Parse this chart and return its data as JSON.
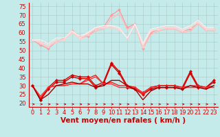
{
  "xlabel": "Vent moyen/en rafales ( km/h )",
  "bg_color": "#c5eaea",
  "grid_color": "#b0cccc",
  "xlim": [
    -0.5,
    23.5
  ],
  "ylim": [
    18,
    77
  ],
  "yticks": [
    20,
    25,
    30,
    35,
    40,
    45,
    50,
    55,
    60,
    65,
    70,
    75
  ],
  "xticks": [
    0,
    1,
    2,
    3,
    4,
    5,
    6,
    7,
    8,
    9,
    10,
    11,
    12,
    13,
    14,
    15,
    16,
    17,
    18,
    19,
    20,
    21,
    22,
    23
  ],
  "lines_light": [
    {
      "x": [
        0,
        1,
        2,
        3,
        4,
        5,
        6,
        7,
        8,
        9,
        10,
        11,
        12,
        13,
        14,
        15,
        16,
        17,
        18,
        19,
        20,
        21,
        22,
        23
      ],
      "y": [
        56,
        53,
        51,
        55,
        57,
        61,
        58,
        58,
        62,
        63,
        70,
        73,
        63,
        65,
        51,
        60,
        62,
        63,
        63,
        61,
        62,
        66,
        62,
        62
      ],
      "color": "#ff9999",
      "lw": 0.9,
      "marker": "D",
      "ms": 2.0
    },
    {
      "x": [
        0,
        1,
        2,
        3,
        4,
        5,
        6,
        7,
        8,
        9,
        10,
        11,
        12,
        13,
        14,
        15,
        16,
        17,
        18,
        19,
        20,
        21,
        22,
        23
      ],
      "y": [
        56,
        54,
        52,
        55,
        56,
        60,
        57,
        58,
        61,
        62,
        68,
        71,
        62,
        64,
        51,
        59,
        61,
        62,
        62,
        60,
        61,
        65,
        61,
        61
      ],
      "color": "#ffbbbb",
      "lw": 0.9,
      "marker": null,
      "ms": 2.0
    },
    {
      "x": [
        0,
        1,
        2,
        3,
        4,
        5,
        6,
        7,
        8,
        9,
        10,
        11,
        12,
        13,
        14,
        15,
        16,
        17,
        18,
        19,
        20,
        21,
        22,
        23
      ],
      "y": [
        56,
        54,
        52,
        55,
        56,
        60,
        57,
        59,
        62,
        63,
        63,
        62,
        57,
        64,
        52,
        61,
        62,
        63,
        63,
        61,
        63,
        66,
        62,
        62
      ],
      "color": "#ffcccc",
      "lw": 0.9,
      "marker": "D",
      "ms": 2.0
    },
    {
      "x": [
        0,
        1,
        2,
        3,
        4,
        5,
        6,
        7,
        8,
        9,
        10,
        11,
        12,
        13,
        14,
        15,
        16,
        17,
        18,
        19,
        20,
        21,
        22,
        23
      ],
      "y": [
        56,
        55,
        53,
        56,
        56,
        61,
        57,
        60,
        63,
        63,
        64,
        62,
        57,
        65,
        53,
        61,
        62,
        63,
        63,
        61,
        63,
        66,
        62,
        62
      ],
      "color": "#ffdddd",
      "lw": 0.9,
      "marker": null,
      "ms": 2.0
    },
    {
      "x": [
        0,
        1,
        2,
        3,
        4,
        5,
        6,
        7,
        8,
        9,
        10,
        11,
        12,
        13,
        14,
        15,
        16,
        17,
        18,
        19,
        20,
        21,
        22,
        23
      ],
      "y": [
        56,
        56,
        54,
        57,
        57,
        61,
        58,
        60,
        63,
        64,
        64,
        63,
        57,
        65,
        54,
        62,
        63,
        64,
        64,
        62,
        64,
        67,
        63,
        63
      ],
      "color": "#ffeeee",
      "lw": 0.9,
      "marker": null,
      "ms": 2.0
    }
  ],
  "lines_dark": [
    {
      "x": [
        0,
        1,
        2,
        3,
        4,
        5,
        6,
        7,
        8,
        9,
        10,
        11,
        12,
        13,
        14,
        15,
        16,
        17,
        18,
        19,
        20,
        21,
        22,
        23
      ],
      "y": [
        30,
        22,
        29,
        33,
        33,
        36,
        35,
        35,
        30,
        32,
        43,
        38,
        30,
        29,
        26,
        29,
        30,
        30,
        30,
        29,
        38,
        30,
        29,
        33
      ],
      "color": "#dd0000",
      "lw": 1.0,
      "marker": "D",
      "ms": 2.2
    },
    {
      "x": [
        0,
        1,
        2,
        3,
        4,
        5,
        6,
        7,
        8,
        9,
        10,
        11,
        12,
        13,
        14,
        15,
        16,
        17,
        18,
        19,
        20,
        21,
        22,
        23
      ],
      "y": [
        30,
        22,
        28,
        32,
        32,
        35,
        34,
        34,
        29,
        31,
        42,
        37,
        29,
        28,
        25,
        28,
        29,
        29,
        29,
        28,
        37,
        29,
        29,
        32
      ],
      "color": "#cc0000",
      "lw": 1.0,
      "marker": "D",
      "ms": 2.2
    },
    {
      "x": [
        0,
        1,
        2,
        3,
        4,
        5,
        6,
        7,
        8,
        9,
        10,
        11,
        12,
        13,
        14,
        15,
        16,
        17,
        18,
        19,
        20,
        21,
        22,
        23
      ],
      "y": [
        30,
        23,
        29,
        30,
        30,
        31,
        31,
        34,
        36,
        31,
        32,
        30,
        30,
        29,
        25,
        29,
        30,
        30,
        30,
        29,
        30,
        30,
        29,
        30
      ],
      "color": "#ee2222",
      "lw": 1.0,
      "marker": null,
      "ms": 2.0
    },
    {
      "x": [
        0,
        1,
        2,
        3,
        4,
        5,
        6,
        7,
        8,
        9,
        10,
        11,
        12,
        13,
        14,
        15,
        16,
        17,
        18,
        19,
        20,
        21,
        22,
        23
      ],
      "y": [
        30,
        24,
        29,
        30,
        30,
        31,
        31,
        33,
        35,
        31,
        31,
        29,
        29,
        29,
        26,
        29,
        29,
        29,
        29,
        29,
        29,
        29,
        29,
        29
      ],
      "color": "#ff3333",
      "lw": 1.0,
      "marker": null,
      "ms": 2.0
    },
    {
      "x": [
        0,
        1,
        2,
        3,
        4,
        5,
        6,
        7,
        8,
        9,
        10,
        11,
        12,
        13,
        14,
        15,
        16,
        17,
        18,
        19,
        20,
        21,
        22,
        23
      ],
      "y": [
        30,
        22,
        25,
        30,
        31,
        32,
        31,
        31,
        29,
        30,
        33,
        33,
        30,
        28,
        22,
        27,
        29,
        29,
        29,
        28,
        30,
        29,
        28,
        30
      ],
      "color": "#990000",
      "lw": 1.0,
      "marker": null,
      "ms": 2.0
    }
  ],
  "xlabel_color": "#cc0000",
  "xlabel_fontsize": 7.5,
  "tick_fontsize": 6,
  "tick_color": "#cc0000",
  "arrow_color": "#cc0000"
}
